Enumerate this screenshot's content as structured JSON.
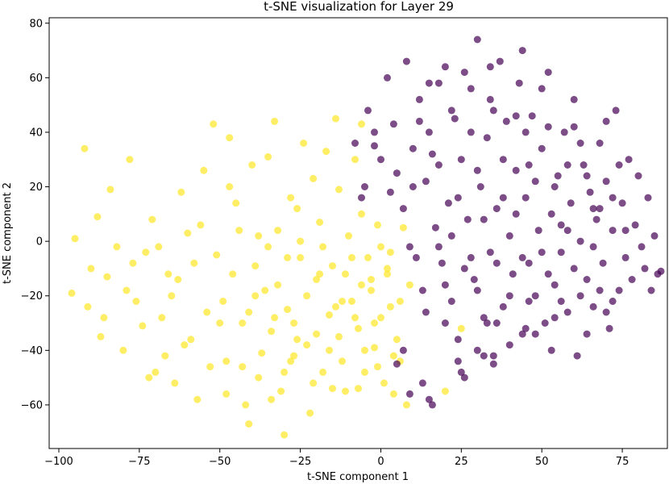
{
  "chart_data": {
    "type": "scatter",
    "title": "t-SNE visualization for Layer 29",
    "xlabel": "t-SNE component 1",
    "ylabel": "t-SNE component 2",
    "xlim": [
      -103,
      89
    ],
    "ylim": [
      -76,
      82
    ],
    "xticks": [
      -100,
      -75,
      -50,
      -25,
      0,
      25,
      50,
      75
    ],
    "yticks": [
      -60,
      -40,
      -20,
      0,
      20,
      40,
      60,
      80
    ],
    "grid": false,
    "colors": {
      "yellow": "#fde725",
      "purple": "#440154"
    },
    "marker_alpha": 0.7,
    "series": [
      {
        "color": "yellow",
        "points": [
          [
            -92,
            34
          ],
          [
            -78,
            30
          ],
          [
            -95,
            1
          ],
          [
            -96,
            -19
          ],
          [
            -91,
            -24
          ],
          [
            -90,
            -10
          ],
          [
            -88,
            9
          ],
          [
            -87,
            -35
          ],
          [
            -85,
            -13
          ],
          [
            -82,
            -2
          ],
          [
            -80,
            -40
          ],
          [
            -76,
            -22
          ],
          [
            -73,
            -4
          ],
          [
            -71,
            8
          ],
          [
            -70,
            -48
          ],
          [
            -68,
            -28
          ],
          [
            -66,
            -12
          ],
          [
            -64,
            -52
          ],
          [
            -62,
            18
          ],
          [
            -60,
            3
          ],
          [
            -59,
            -36
          ],
          [
            -57,
            -58
          ],
          [
            -55,
            26
          ],
          [
            -52,
            43
          ],
          [
            -51,
            -5
          ],
          [
            -49,
            -22
          ],
          [
            -48,
            -44
          ],
          [
            -47,
            38
          ],
          [
            -45,
            14
          ],
          [
            -43,
            -30
          ],
          [
            -42,
            -60
          ],
          [
            -41,
            -67
          ],
          [
            -40,
            28
          ],
          [
            -39,
            -9
          ],
          [
            -38,
            -50
          ],
          [
            -36,
            -18
          ],
          [
            -35,
            31
          ],
          [
            -34,
            -33
          ],
          [
            -33,
            44
          ],
          [
            -32,
            4
          ],
          [
            -31,
            -55
          ],
          [
            -30,
            -71
          ],
          [
            -29,
            -25
          ],
          [
            -28,
            16
          ],
          [
            -27,
            -42
          ],
          [
            -26,
            12
          ],
          [
            -25,
            -6
          ],
          [
            -24,
            36
          ],
          [
            -23,
            -38
          ],
          [
            -22,
            -63
          ],
          [
            -21,
            23
          ],
          [
            -20,
            -14
          ],
          [
            -19,
            7
          ],
          [
            -18,
            -48
          ],
          [
            -17,
            33
          ],
          [
            -16,
            -27
          ],
          [
            -15,
            -9
          ],
          [
            -14,
            45
          ],
          [
            -13,
            19
          ],
          [
            -12,
            -44
          ],
          [
            -11,
            -55
          ],
          [
            -10,
            2
          ],
          [
            -9,
            -22
          ],
          [
            -8,
            30
          ],
          [
            -7,
            -32
          ],
          [
            -6,
            10
          ],
          [
            -5,
            -48
          ],
          [
            -4,
            -6
          ],
          [
            -3,
            -18
          ],
          [
            -2,
            -39
          ],
          [
            -1,
            6
          ],
          [
            0,
            -28
          ],
          [
            1,
            -52
          ],
          [
            2,
            -12
          ],
          [
            3,
            -4
          ],
          [
            5,
            -36
          ],
          [
            6,
            -22
          ],
          [
            7,
            5
          ],
          [
            8,
            -60
          ],
          [
            -6,
            43
          ],
          [
            9,
            -16
          ],
          [
            -84,
            19
          ],
          [
            -79,
            -18
          ],
          [
            -74,
            -31
          ],
          [
            -69,
            -2
          ],
          [
            -65,
            -20
          ],
          [
            -61,
            -38
          ],
          [
            -58,
            -8
          ],
          [
            -56,
            6
          ],
          [
            -53,
            -46
          ],
          [
            -50,
            -30
          ],
          [
            -46,
            -12
          ],
          [
            -44,
            4
          ],
          [
            -41,
            -26
          ],
          [
            -37,
            -41
          ],
          [
            -35,
            -2
          ],
          [
            -32,
            -16
          ],
          [
            -30,
            -48
          ],
          [
            -27,
            -30
          ],
          [
            -25,
            0
          ],
          [
            -23,
            -20
          ],
          [
            -20,
            -34
          ],
          [
            -18,
            -2
          ],
          [
            -15,
            -54
          ],
          [
            -13,
            -35
          ],
          [
            -11,
            -12
          ],
          [
            -8,
            -28
          ],
          [
            -5,
            -40
          ],
          [
            -3,
            -14
          ],
          [
            -1,
            -46
          ],
          [
            3,
            -24
          ],
          [
            6,
            -44
          ],
          [
            -86,
            -28
          ],
          [
            -77,
            -8
          ],
          [
            -72,
            -50
          ],
          [
            -67,
            -42
          ],
          [
            -63,
            -14
          ],
          [
            -54,
            -26
          ],
          [
            -48,
            -56
          ],
          [
            -43,
            -46
          ],
          [
            -39,
            -20
          ],
          [
            -34,
            -58
          ],
          [
            -29,
            -6
          ],
          [
            -26,
            -36
          ],
          [
            -21,
            -52
          ],
          [
            -16,
            -40
          ],
          [
            -12,
            -22
          ],
          [
            -9,
            -6
          ],
          [
            -7,
            -54
          ],
          [
            -2,
            -30
          ],
          [
            2,
            -10
          ],
          [
            4,
            -42
          ],
          [
            20,
            -55
          ],
          [
            25,
            -32
          ],
          [
            -47,
            20
          ],
          [
            -38,
            2
          ],
          [
            -33,
            -28
          ],
          [
            -28,
            -44
          ],
          [
            -19,
            -12
          ],
          [
            -14,
            -24
          ],
          [
            -6,
            -16
          ],
          [
            0,
            -2
          ],
          [
            4,
            -56
          ]
        ]
      },
      {
        "color": "purple",
        "points": [
          [
            -4,
            48
          ],
          [
            -2,
            40
          ],
          [
            0,
            30
          ],
          [
            2,
            60
          ],
          [
            3,
            18
          ],
          [
            4,
            43
          ],
          [
            5,
            25
          ],
          [
            7,
            12
          ],
          [
            8,
            66
          ],
          [
            9,
            -2
          ],
          [
            10,
            34
          ],
          [
            11,
            -6
          ],
          [
            12,
            52
          ],
          [
            13,
            -18
          ],
          [
            14,
            22
          ],
          [
            15,
            40
          ],
          [
            16,
            -60
          ],
          [
            17,
            5
          ],
          [
            18,
            28
          ],
          [
            19,
            -8
          ],
          [
            20,
            64
          ],
          [
            21,
            14
          ],
          [
            22,
            -22
          ],
          [
            23,
            45
          ],
          [
            24,
            -36
          ],
          [
            25,
            30
          ],
          [
            26,
            -50
          ],
          [
            27,
            8
          ],
          [
            28,
            56
          ],
          [
            29,
            -14
          ],
          [
            30,
            74
          ],
          [
            31,
            20
          ],
          [
            32,
            -28
          ],
          [
            33,
            38
          ],
          [
            34,
            -4
          ],
          [
            35,
            -42
          ],
          [
            36,
            12
          ],
          [
            37,
            66
          ],
          [
            38,
            -24
          ],
          [
            39,
            44
          ],
          [
            40,
            2
          ],
          [
            41,
            -12
          ],
          [
            42,
            26
          ],
          [
            43,
            58
          ],
          [
            44,
            -34
          ],
          [
            45,
            16
          ],
          [
            46,
            -8
          ],
          [
            47,
            46
          ],
          [
            48,
            -20
          ],
          [
            49,
            4
          ],
          [
            50,
            34
          ],
          [
            51,
            -30
          ],
          [
            52,
            62
          ],
          [
            53,
            10
          ],
          [
            54,
            -16
          ],
          [
            55,
            24
          ],
          [
            56,
            -4
          ],
          [
            57,
            40
          ],
          [
            58,
            -26
          ],
          [
            59,
            14
          ],
          [
            60,
            52
          ],
          [
            61,
            -42
          ],
          [
            62,
            0
          ],
          [
            63,
            28
          ],
          [
            64,
            -14
          ],
          [
            65,
            18
          ],
          [
            66,
            -24
          ],
          [
            67,
            8
          ],
          [
            68,
            36
          ],
          [
            69,
            -8
          ],
          [
            70,
            22
          ],
          [
            71,
            -32
          ],
          [
            72,
            4
          ],
          [
            73,
            48
          ],
          [
            74,
            -18
          ],
          [
            75,
            14
          ],
          [
            76,
            -6
          ],
          [
            77,
            30
          ],
          [
            78,
            -14
          ],
          [
            79,
            6
          ],
          [
            80,
            24
          ],
          [
            81,
            -2
          ],
          [
            82,
            -10
          ],
          [
            83,
            16
          ],
          [
            84,
            -18
          ],
          [
            85,
            2
          ],
          [
            86,
            -12
          ],
          [
            87,
            -11
          ],
          [
            15,
            58
          ],
          [
            18,
            -2
          ],
          [
            22,
            48
          ],
          [
            24,
            16
          ],
          [
            26,
            -10
          ],
          [
            28,
            40
          ],
          [
            30,
            -18
          ],
          [
            32,
            8
          ],
          [
            34,
            52
          ],
          [
            36,
            -30
          ],
          [
            38,
            30
          ],
          [
            40,
            -38
          ],
          [
            42,
            10
          ],
          [
            44,
            70
          ],
          [
            46,
            -22
          ],
          [
            48,
            22
          ],
          [
            50,
            -4
          ],
          [
            52,
            42
          ],
          [
            54,
            -28
          ],
          [
            56,
            6
          ],
          [
            58,
            28
          ],
          [
            60,
            -10
          ],
          [
            62,
            36
          ],
          [
            64,
            -34
          ],
          [
            66,
            12
          ],
          [
            68,
            -18
          ],
          [
            70,
            44
          ],
          [
            72,
            -22
          ],
          [
            74,
            28
          ],
          [
            76,
            4
          ],
          [
            -8,
            36
          ],
          [
            -6,
            16
          ],
          [
            10,
            20
          ],
          [
            12,
            44
          ],
          [
            14,
            -26
          ],
          [
            16,
            32
          ],
          [
            18,
            58
          ],
          [
            20,
            -30
          ],
          [
            22,
            2
          ],
          [
            24,
            -44
          ],
          [
            26,
            62
          ],
          [
            28,
            -6
          ],
          [
            30,
            26
          ],
          [
            32,
            -42
          ],
          [
            34,
            64
          ],
          [
            36,
            -8
          ],
          [
            38,
            16
          ],
          [
            40,
            -20
          ],
          [
            42,
            46
          ],
          [
            44,
            -6
          ],
          [
            46,
            28
          ],
          [
            48,
            -34
          ],
          [
            50,
            56
          ],
          [
            52,
            -12
          ],
          [
            54,
            20
          ],
          [
            56,
            -22
          ],
          [
            58,
            4
          ],
          [
            60,
            42
          ],
          [
            62,
            -20
          ],
          [
            64,
            24
          ],
          [
            66,
            -2
          ],
          [
            68,
            12
          ],
          [
            70,
            -26
          ],
          [
            72,
            16
          ],
          [
            15,
            -58
          ],
          [
            25,
            -48
          ],
          [
            35,
            -45
          ],
          [
            33,
            -30
          ],
          [
            30,
            -40
          ],
          [
            53,
            -40
          ],
          [
            45,
            -32
          ],
          [
            5,
            -45
          ],
          [
            -2,
            35
          ],
          [
            -5,
            20
          ],
          [
            7,
            -40
          ],
          [
            9,
            -56
          ],
          [
            13,
            -52
          ],
          [
            20,
            -16
          ],
          [
            35,
            48
          ],
          [
            45,
            40
          ]
        ]
      }
    ]
  }
}
